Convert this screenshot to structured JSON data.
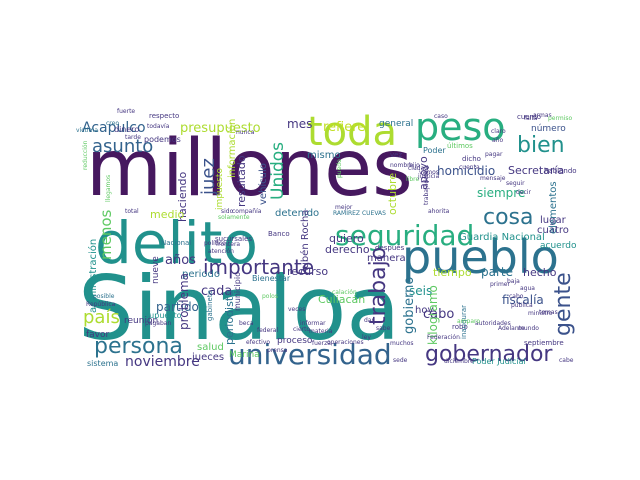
{
  "palette": {
    "dark_purple": "#46185f",
    "purple": "#453781",
    "indigo": "#3b528b",
    "blue": "#33638d",
    "teal_blue": "#2c728e",
    "teal": "#21918c",
    "green_teal": "#28ae80",
    "green": "#5ec962",
    "lime": "#addc30",
    "yellow_green": "#c2df23"
  },
  "words": [
    {
      "id": "sinaloa",
      "text": "Sinaloa"
    },
    {
      "id": "millones",
      "text": "millones"
    },
    {
      "id": "delito",
      "text": "delito"
    },
    {
      "id": "pueblo",
      "text": "pueblo"
    },
    {
      "id": "peso",
      "text": "peso"
    },
    {
      "id": "toda",
      "text": "toda"
    },
    {
      "id": "seguridad",
      "text": "seguridad"
    },
    {
      "id": "universidad",
      "text": "universidad"
    },
    {
      "id": "gobernador",
      "text": "gobernador"
    },
    {
      "id": "importante",
      "text": "importante"
    },
    {
      "id": "persona",
      "text": "persona"
    },
    {
      "id": "asunto",
      "text": "asunto"
    },
    {
      "id": "cosa",
      "text": "cosa"
    },
    {
      "id": "bien",
      "text": "bien"
    },
    {
      "id": "gente",
      "text": "gente"
    },
    {
      "id": "trabajo",
      "text": "trabajo"
    },
    {
      "id": "pais",
      "text": "país"
    },
    {
      "id": "juez",
      "text": "juez"
    },
    {
      "id": "unidos",
      "text": "Unidos"
    },
    {
      "id": "menos",
      "text": "menos"
    },
    {
      "id": "noviembre",
      "text": "noviembre"
    },
    {
      "id": "acapulco",
      "text": "Acapulco"
    },
    {
      "id": "presupuesto",
      "text": "presupuesto"
    },
    {
      "id": "mes",
      "text": "mes"
    },
    {
      "id": "refiere",
      "text": "refiere"
    },
    {
      "id": "homicidio",
      "text": "homicidio"
    },
    {
      "id": "secretaria",
      "text": "Secretaría"
    },
    {
      "id": "siempre",
      "text": "siempre"
    },
    {
      "id": "partido",
      "text": "partido"
    },
    {
      "id": "cada",
      "text": "cada"
    },
    {
      "id": "anos",
      "text": "años"
    },
    {
      "id": "fiscalia",
      "text": "fiscalía"
    },
    {
      "id": "seis",
      "text": "seis"
    },
    {
      "id": "cabo",
      "text": "cabo"
    },
    {
      "id": "culiacan",
      "text": "Culiacán"
    },
    {
      "id": "gobierno",
      "text": "gobierno"
    },
    {
      "id": "kilogramo",
      "text": "kilogramo"
    },
    {
      "id": "tiempo",
      "text": "tiempo"
    },
    {
      "id": "parte",
      "text": "parte"
    },
    {
      "id": "hecho",
      "text": "hecho"
    },
    {
      "id": "guardia_nacional",
      "text": "Guardia Nacional"
    },
    {
      "id": "resultado",
      "text": "resultado"
    },
    {
      "id": "haciendo",
      "text": "haciendo"
    },
    {
      "id": "informacion",
      "text": "información"
    },
    {
      "id": "impuesto",
      "text": "impuesto"
    },
    {
      "id": "vehiculo",
      "text": "vehículo"
    },
    {
      "id": "mismo",
      "text": "mismo"
    },
    {
      "id": "detenido",
      "text": "detenido"
    },
    {
      "id": "ruben_rocha",
      "text": "Rubén Rocha"
    },
    {
      "id": "octubre",
      "text": "octubre"
    },
    {
      "id": "apoyo",
      "text": "apoyo"
    },
    {
      "id": "lugar",
      "text": "lugar"
    },
    {
      "id": "cuatro",
      "text": "cuatro"
    },
    {
      "id": "acuerdo",
      "text": "acuerdo"
    },
    {
      "id": "quiero",
      "text": "quiero"
    },
    {
      "id": "derecho",
      "text": "derecho"
    },
    {
      "id": "manera",
      "text": "manera"
    },
    {
      "id": "recurso",
      "text": "recurso"
    },
    {
      "id": "periodo",
      "text": "periodo"
    },
    {
      "id": "problema",
      "text": "problema"
    },
    {
      "id": "periodista",
      "text": "periodista"
    },
    {
      "id": "marina",
      "text": "Marina"
    },
    {
      "id": "salud",
      "text": "salud"
    },
    {
      "id": "jueces",
      "text": "jueces"
    },
    {
      "id": "proceso",
      "text": "proceso"
    },
    {
      "id": "administracion",
      "text": "administración"
    },
    {
      "id": "medio",
      "text": "medio"
    },
    {
      "id": "nueve",
      "text": "nueve"
    },
    {
      "id": "reunion",
      "text": "reunión"
    },
    {
      "id": "favor",
      "text": "favor"
    },
    {
      "id": "sistema",
      "text": "sistema"
    },
    {
      "id": "general",
      "text": "general"
    },
    {
      "id": "numero",
      "text": "número"
    },
    {
      "id": "elementos",
      "text": "elementos"
    },
    {
      "id": "poder",
      "text": "Poder"
    },
    {
      "id": "dinero",
      "text": "dinero"
    },
    {
      "id": "podemos",
      "text": "podemos"
    },
    {
      "id": "hoy",
      "text": "hoy"
    },
    {
      "id": "bienestar",
      "text": "Bienestar"
    },
    {
      "id": "supuesto",
      "text": "supuesto"
    },
    {
      "id": "poder_judicial",
      "text": "Poder Judicial"
    },
    {
      "id": "septiembre",
      "text": "septiembre"
    },
    {
      "id": "respecto",
      "text": "respecto"
    },
    {
      "id": "despues",
      "text": "después"
    },
    {
      "id": "banco",
      "text": "Banco"
    },
    {
      "id": "nacional",
      "text": "Nacional"
    },
    {
      "id": "municipio",
      "text": "municipio"
    },
    {
      "id": "gabinete",
      "text": "gabinete"
    },
    {
      "id": "robo",
      "text": "robo"
    },
    {
      "id": "inaugurar",
      "text": "inaugurar"
    },
    {
      "id": "cuento",
      "text": "cuento"
    },
    {
      "id": "hablando",
      "text": "hablando"
    },
    {
      "id": "sucursales",
      "text": "sucursales"
    },
    {
      "id": "ultimos",
      "text": "últimos"
    },
    {
      "id": "ramirez_cuevas",
      "text": "RAMÍREZ CUEVAS"
    },
    {
      "id": "ahorita",
      "text": "ahorita"
    },
    {
      "id": "vez",
      "text": "vez"
    },
    {
      "id": "dicho",
      "text": "dicho"
    },
    {
      "id": "politico",
      "text": "político"
    },
    {
      "id": "federacion",
      "text": "Federación"
    },
    {
      "id": "autoridades",
      "text": "autoridades"
    },
    {
      "id": "efectivo",
      "text": "efectivo"
    },
    {
      "id": "operaciones",
      "text": "operaciones"
    },
    {
      "id": "diciembre",
      "text": "diciembre"
    },
    {
      "id": "mundo",
      "text": "mundo"
    },
    {
      "id": "ministro",
      "text": "ministro"
    },
    {
      "id": "amparo",
      "text": "amparo"
    },
    {
      "id": "publica",
      "text": "pública"
    },
    {
      "id": "republica",
      "text": "República"
    },
    {
      "id": "prensa",
      "text": "prensa"
    },
    {
      "id": "fuerza",
      "text": "fuerza"
    },
    {
      "id": "cierto",
      "text": "cierto"
    },
    {
      "id": "materia",
      "text": "materia"
    },
    {
      "id": "federal",
      "text": "federal"
    },
    {
      "id": "informar",
      "text": "informar"
    },
    {
      "id": "posible",
      "text": "posible"
    },
    {
      "id": "victima",
      "text": "víctima"
    },
    {
      "id": "reduccion",
      "text": "reducción"
    },
    {
      "id": "seguir",
      "text": "seguir"
    },
    {
      "id": "pagar",
      "text": "pagar"
    },
    {
      "id": "calacion",
      "text": "calación"
    },
    {
      "id": "total",
      "text": "total"
    },
    {
      "id": "companie",
      "text": "compañía"
    },
    {
      "id": "solamente",
      "text": "solamente"
    },
    {
      "id": "decir",
      "text": "decir"
    },
    {
      "id": "baja",
      "text": "baja"
    },
    {
      "id": "primer",
      "text": "primer"
    },
    {
      "id": "agua",
      "text": "agua"
    },
    {
      "id": "cabo_small",
      "text": "cabo"
    },
    {
      "id": "ciudad",
      "text": "ciudad"
    },
    {
      "id": "frontera",
      "text": "frontera"
    },
    {
      "id": "beca",
      "text": "beca"
    },
    {
      "id": "pagaban",
      "text": "pagaban"
    },
    {
      "id": "llegamos",
      "text": "llegamos"
    },
    {
      "id": "sido",
      "text": "sido"
    },
    {
      "id": "puedo",
      "text": "puedo"
    },
    {
      "id": "mejor",
      "text": "mejor"
    },
    {
      "id": "adelante",
      "text": "Adelante"
    },
    {
      "id": "nunca",
      "text": "nunca"
    },
    {
      "id": "creo",
      "text": "creo"
    },
    {
      "id": "todavia",
      "text": "todavía"
    },
    {
      "id": "fuerte",
      "text": "fuerte"
    },
    {
      "id": "total2",
      "text": "tarde"
    },
    {
      "id": "temas",
      "text": "temas"
    },
    {
      "id": "cuenta",
      "text": "cuenta"
    },
    {
      "id": "hijo",
      "text": "hijo"
    },
    {
      "id": "falta",
      "text": "falta"
    },
    {
      "id": "vamos",
      "text": "vamos"
    },
    {
      "id": "libre",
      "text": "libre"
    },
    {
      "id": "armas",
      "text": "armas"
    },
    {
      "id": "permiso",
      "text": "permiso"
    },
    {
      "id": "nombre",
      "text": "nombre"
    },
    {
      "id": "dar",
      "text": "dar"
    },
    {
      "id": "veces",
      "text": "veces"
    },
    {
      "id": "polos",
      "text": "polos"
    },
    {
      "id": "ley",
      "text": "ley"
    },
    {
      "id": "pagar2",
      "text": "atención"
    },
    {
      "id": "muchos",
      "text": "muchos"
    },
    {
      "id": "sabe",
      "text": "sabe"
    },
    {
      "id": "justicia",
      "text": "justicia"
    },
    {
      "id": "claro",
      "text": "claro"
    },
    {
      "id": "ano",
      "text": "año"
    },
    {
      "id": "mensaje",
      "text": "mensaje"
    },
    {
      "id": "trabajadores",
      "text": "trabajadores"
    },
    {
      "id": "cabe",
      "text": "cabe"
    },
    {
      "id": "sede",
      "text": "sede"
    },
    {
      "id": "caso",
      "text": "caso"
    }
  ]
}
